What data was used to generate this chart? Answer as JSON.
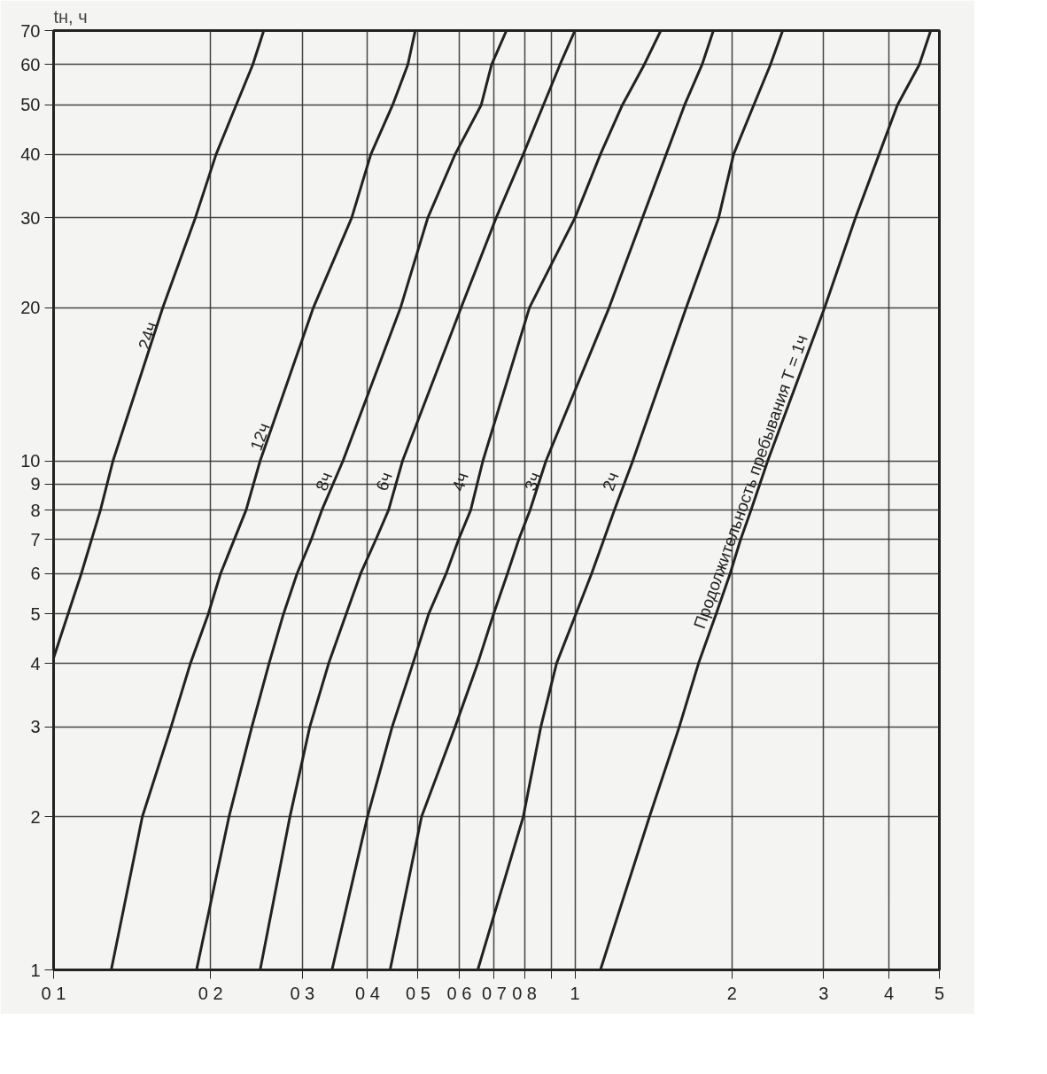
{
  "chart_data": {
    "type": "line",
    "ylabel": "tн, ч",
    "log": "xy",
    "grid": true,
    "marker": "none",
    "line_style": "solid",
    "xlim": [
      0.1,
      5
    ],
    "ylim": [
      1,
      70
    ],
    "xticks": [
      {
        "value": 0.1,
        "label": "0 1"
      },
      {
        "value": 0.2,
        "label": "0 2"
      },
      {
        "value": 0.3,
        "label": "0 3"
      },
      {
        "value": 0.4,
        "label": "0 4"
      },
      {
        "value": 0.5,
        "label": "0 5"
      },
      {
        "value": 0.6,
        "label": "0 6"
      },
      {
        "value": 0.7,
        "label": "0 7"
      },
      {
        "value": 0.8,
        "label": "0 8"
      },
      {
        "value": 0.9,
        "label": null
      },
      1,
      2,
      3,
      4,
      5
    ],
    "yticks": [
      1,
      2,
      3,
      4,
      5,
      6,
      7,
      8,
      9,
      10,
      20,
      30,
      40,
      50,
      60,
      70
    ],
    "series": [
      {
        "name": "24ч",
        "color": "#222222",
        "x": [
          0.1,
          0.113,
          0.123,
          0.13,
          0.162,
          0.187,
          0.205,
          0.224,
          0.241,
          0.253
        ],
        "values": [
          4.1,
          6,
          8,
          10,
          20,
          30,
          40,
          50,
          60,
          70
        ]
      },
      {
        "name": "12ч",
        "color": "#222222",
        "x": [
          0.129,
          0.148,
          0.168,
          0.183,
          0.198,
          0.209,
          0.234,
          0.249,
          0.315,
          0.373,
          0.406,
          0.447,
          0.478,
          0.494
        ],
        "values": [
          1,
          2,
          3,
          4,
          5,
          6,
          8,
          10,
          20,
          30,
          40,
          50,
          60,
          70
        ]
      },
      {
        "name": "8ч",
        "color": "#222222",
        "x": [
          0.188,
          0.217,
          0.24,
          0.259,
          0.276,
          0.293,
          0.312,
          0.327,
          0.359,
          0.463,
          0.522,
          0.589,
          0.661,
          0.692,
          0.739
        ],
        "values": [
          1,
          2,
          3,
          4,
          5,
          6,
          7,
          8,
          10,
          20,
          30,
          40,
          50,
          60,
          70
        ]
      },
      {
        "name": "6ч",
        "color": "#222222",
        "x": [
          0.249,
          0.284,
          0.31,
          0.337,
          0.364,
          0.388,
          0.415,
          0.439,
          0.467,
          0.605,
          0.706,
          0.796,
          0.87,
          0.936,
          1.0
        ],
        "values": [
          1,
          2,
          3,
          4,
          5,
          6,
          7,
          8,
          10,
          20,
          30,
          40,
          50,
          60,
          70
        ]
      },
      {
        "name": "4ч",
        "color": "#222222",
        "x": [
          0.342,
          0.4,
          0.446,
          0.489,
          0.524,
          0.566,
          0.598,
          0.631,
          0.666,
          0.818,
          1.0,
          1.119,
          1.233,
          1.358,
          1.461
        ],
        "values": [
          1,
          2,
          3,
          4,
          5,
          6,
          7,
          8,
          10,
          20,
          30,
          40,
          50,
          60,
          70
        ]
      },
      {
        "name": "3ч",
        "color": "#222222",
        "x": [
          0.442,
          0.508,
          0.589,
          0.651,
          0.698,
          0.742,
          0.78,
          0.82,
          0.88,
          1.163,
          1.347,
          1.496,
          1.623,
          1.753,
          1.843
        ],
        "values": [
          1,
          2,
          3,
          4,
          5,
          6,
          7,
          8,
          10,
          20,
          30,
          40,
          50,
          60,
          70
        ]
      },
      {
        "name": "2ч",
        "color": "#222222",
        "x": [
          0.651,
          0.796,
          0.86,
          0.922,
          1.004,
          1.076,
          1.136,
          1.19,
          1.291,
          1.635,
          1.886,
          2.015,
          2.203,
          2.371,
          2.503
        ],
        "values": [
          1,
          2,
          3,
          4,
          5,
          6,
          7,
          8,
          10,
          20,
          30,
          40,
          50,
          60,
          70
        ]
      },
      {
        "name": "Продолжительность пребывания T = 1ч",
        "color": "#222222",
        "x": [
          1.119,
          1.39,
          1.585,
          1.726,
          1.865,
          1.984,
          2.078,
          2.176,
          2.343,
          3.013,
          3.451,
          3.831,
          4.155,
          4.576,
          4.813
        ],
        "values": [
          1,
          2,
          3,
          4,
          5,
          6,
          7,
          8,
          10,
          20,
          30,
          40,
          50,
          60,
          70
        ]
      }
    ]
  }
}
